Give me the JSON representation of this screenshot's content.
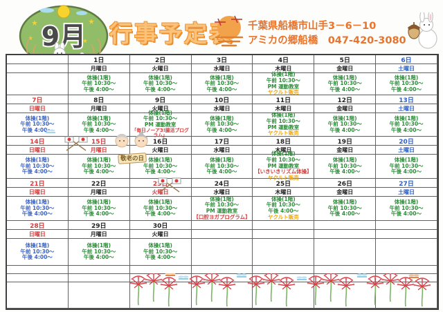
{
  "header": {
    "month_badge": "9月",
    "title": "行事予定表",
    "address": "千葉県船橋市山手3－6－10",
    "facility_phone": "アミカの郷船橋　047-420-3080",
    "decorations": [
      "moon-viewing-bush-icon",
      "harvest-moon-water-icon",
      "rabbit-acorn-icon"
    ]
  },
  "colors": {
    "title_orange": "#f49b3e",
    "address_orange": "#e8742d",
    "event_green": "#2e8b3a",
    "sunday_red": "#d43c3c",
    "saturday_blue": "#2b5fc7",
    "sunday_event_blue": "#3a62c9",
    "yakult_orange": "#f0a409",
    "grid_line": "#5f5f5f"
  },
  "calendar": {
    "keiro_banner": "敬老の日",
    "footer_decoration": "red-spider-lilies-and-dragonflies",
    "footer_rows": [
      {
        "type": "thin"
      },
      {
        "type": "thin"
      },
      {
        "type": "tall"
      }
    ],
    "weeks": [
      {
        "cells": [
          {},
          {
            "date": "1日",
            "day": "月曜日",
            "tone": "weekday",
            "lines": [
              {
                "text": "体操(1階)",
                "color": "green"
              },
              {
                "text": "午前 10:30～",
                "color": "green"
              },
              {
                "text": "午後 4:00～",
                "color": "green"
              }
            ]
          },
          {
            "date": "2日",
            "day": "火曜日",
            "tone": "weekday",
            "lines": [
              {
                "text": "体操(1階)",
                "color": "green"
              },
              {
                "text": "午前 10:30～",
                "color": "green"
              },
              {
                "text": "午後 4:00～",
                "color": "green"
              }
            ]
          },
          {
            "date": "3日",
            "day": "水曜日",
            "tone": "weekday",
            "lines": [
              {
                "text": "体操(1階)",
                "color": "green"
              },
              {
                "text": "午前 10:30～",
                "color": "green"
              },
              {
                "text": "午後 4:00～",
                "color": "green"
              }
            ]
          },
          {
            "date": "4日",
            "day": "木曜日",
            "tone": "weekday",
            "lines": [
              {
                "text": "体操(1階)",
                "color": "green"
              },
              {
                "text": "午前 10:30～",
                "color": "green"
              },
              {
                "text": "PM 運動教室",
                "color": "green"
              },
              {
                "text": "ヤクルト販売",
                "color": "orange"
              }
            ]
          },
          {
            "date": "5日",
            "day": "金曜日",
            "tone": "weekday",
            "lines": [
              {
                "text": "体操(1階)",
                "color": "green"
              },
              {
                "text": "午前 10:30～",
                "color": "green"
              },
              {
                "text": "午後 4:00～",
                "color": "green"
              }
            ]
          },
          {
            "date": "6日",
            "day": "土曜日",
            "tone": "saturday",
            "lines": [
              {
                "text": "体操(1階)",
                "color": "green"
              },
              {
                "text": "午前 10:30～",
                "color": "green"
              },
              {
                "text": "午後 4:00～",
                "color": "green"
              }
            ]
          }
        ]
      },
      {
        "cells": [
          {
            "date": "7日",
            "day": "日曜日",
            "tone": "sunday",
            "lines": [
              {
                "text": "体操(1階)",
                "color": "blue"
              },
              {
                "text": "午前 10:30～",
                "color": "blue"
              },
              {
                "text": "午後 4:00～",
                "color": "blue"
              }
            ]
          },
          {
            "date": "8日",
            "day": "月曜日",
            "tone": "weekday",
            "lines": [
              {
                "text": "体操(1階)",
                "color": "green"
              },
              {
                "text": "午前 10:30～",
                "color": "green"
              },
              {
                "text": "午後 4:00～",
                "color": "green"
              }
            ]
          },
          {
            "date": "9日",
            "day": "火曜日",
            "tone": "weekday",
            "lines": [
              {
                "text": "体操(1階)",
                "color": "green"
              },
              {
                "text": "午前 10:30～",
                "color": "green"
              },
              {
                "text": "PM 運動教室",
                "color": "green"
              },
              {
                "text": "「毎日ノーア3!腸活プログラム」",
                "color": "red"
              }
            ]
          },
          {
            "date": "10日",
            "day": "水曜日",
            "tone": "weekday",
            "lines": [
              {
                "text": "体操(1階)",
                "color": "green"
              },
              {
                "text": "午前 10:30～",
                "color": "green"
              },
              {
                "text": "午後 4:00～",
                "color": "green"
              }
            ]
          },
          {
            "date": "11日",
            "day": "木曜日",
            "tone": "weekday",
            "lines": [
              {
                "text": "体操(1階)",
                "color": "green"
              },
              {
                "text": "午前 10:30～",
                "color": "green"
              },
              {
                "text": "PM 運動教室",
                "color": "green"
              },
              {
                "text": "ヤクルト販売",
                "color": "orange"
              }
            ]
          },
          {
            "date": "12日",
            "day": "金曜日",
            "tone": "weekday",
            "lines": [
              {
                "text": "体操(1階)",
                "color": "green"
              },
              {
                "text": "午前 10:30～",
                "color": "green"
              },
              {
                "text": "午後 4:00～",
                "color": "green"
              }
            ]
          },
          {
            "date": "13日",
            "day": "土曜日",
            "tone": "saturday",
            "lines": [
              {
                "text": "体操(1階)",
                "color": "green"
              },
              {
                "text": "午前 10:30～",
                "color": "green"
              },
              {
                "text": "午後 4:00～",
                "color": "green"
              }
            ]
          }
        ]
      },
      {
        "cells": [
          {
            "date": "14日",
            "day": "日曜日",
            "tone": "sunday",
            "lines": [
              {
                "text": "体操(1階)",
                "color": "blue"
              },
              {
                "text": "午前 10:30～",
                "color": "blue"
              },
              {
                "text": "午後 4:00～",
                "color": "blue"
              }
            ]
          },
          {
            "date": "15日",
            "day": "月曜日",
            "tone": "holiday",
            "lines": [
              {
                "text": "体操(1階)",
                "color": "green"
              },
              {
                "text": "午前 10:30～",
                "color": "green"
              },
              {
                "text": "午後 4:00～",
                "color": "green"
              }
            ]
          },
          {
            "date": "16日",
            "day": "火曜日",
            "tone": "weekday",
            "lines": [
              {
                "text": "体操(1階)",
                "color": "green"
              },
              {
                "text": "午前 10:30～",
                "color": "green"
              },
              {
                "text": "午後 4:00～",
                "color": "green"
              }
            ]
          },
          {
            "date": "17日",
            "day": "水曜日",
            "tone": "weekday",
            "lines": [
              {
                "text": "体操(1階)",
                "color": "green"
              },
              {
                "text": "午前 10:30～",
                "color": "green"
              },
              {
                "text": "午後 4:00～",
                "color": "green"
              }
            ]
          },
          {
            "date": "18日",
            "day": "木曜日",
            "tone": "weekday",
            "lines": [
              {
                "text": "体操(1階)",
                "color": "green"
              },
              {
                "text": "午前 10:30～",
                "color": "green"
              },
              {
                "text": "PM 運動教室",
                "color": "green"
              },
              {
                "text": "【いきいきリズム体操】",
                "color": "red"
              },
              {
                "text": "ヤクルト販売",
                "color": "orange"
              }
            ]
          },
          {
            "date": "19日",
            "day": "金曜日",
            "tone": "weekday",
            "lines": [
              {
                "text": "体操(1階)",
                "color": "green"
              },
              {
                "text": "午前 10:30～",
                "color": "green"
              },
              {
                "text": "午後 4:00～",
                "color": "green"
              }
            ]
          },
          {
            "date": "20日",
            "day": "土曜日",
            "tone": "saturday",
            "lines": [
              {
                "text": "体操(1階)",
                "color": "green"
              },
              {
                "text": "午前 10:30～",
                "color": "green"
              },
              {
                "text": "午後 4:00～",
                "color": "green"
              }
            ]
          }
        ]
      },
      {
        "cells": [
          {
            "date": "21日",
            "day": "日曜日",
            "tone": "sunday",
            "lines": [
              {
                "text": "体操(1階)",
                "color": "blue"
              },
              {
                "text": "午前 10:30～",
                "color": "blue"
              },
              {
                "text": "午後 4:00～",
                "color": "blue"
              }
            ]
          },
          {
            "date": "22日",
            "day": "月曜日",
            "tone": "weekday",
            "lines": [
              {
                "text": "体操(1階)",
                "color": "green"
              },
              {
                "text": "午前 10:30～",
                "color": "green"
              },
              {
                "text": "午後 4:00～",
                "color": "green"
              }
            ]
          },
          {
            "date": "23日",
            "day": "火曜日",
            "tone": "holiday",
            "lines": [
              {
                "text": "体操(1階)",
                "color": "green"
              },
              {
                "text": "午前 10:30～",
                "color": "green"
              },
              {
                "text": "午後 4:00～",
                "color": "green"
              }
            ]
          },
          {
            "date": "24日",
            "day": "水曜日",
            "tone": "weekday",
            "lines": [
              {
                "text": "体操(1階)",
                "color": "green"
              },
              {
                "text": "午前 10:30～",
                "color": "green"
              },
              {
                "text": "PM 運動教室",
                "color": "green"
              },
              {
                "text": "【口腔ヨガプログラム】",
                "color": "red"
              }
            ]
          },
          {
            "date": "25日",
            "day": "木曜日",
            "tone": "weekday",
            "lines": [
              {
                "text": "体操(1階)",
                "color": "green"
              },
              {
                "text": "午前 10:30～",
                "color": "green"
              },
              {
                "text": "午後 4:00～",
                "color": "green"
              },
              {
                "text": "ヤクルト販売",
                "color": "orange"
              }
            ]
          },
          {
            "date": "26日",
            "day": "金曜日",
            "tone": "weekday",
            "lines": [
              {
                "text": "体操(1階)",
                "color": "green"
              },
              {
                "text": "午前 10:30～",
                "color": "green"
              },
              {
                "text": "午後 4:00～",
                "color": "green"
              }
            ]
          },
          {
            "date": "27日",
            "day": "土曜日",
            "tone": "saturday",
            "lines": [
              {
                "text": "体操(1階)",
                "color": "green"
              },
              {
                "text": "午前 10:30～",
                "color": "green"
              },
              {
                "text": "午後 4:00～",
                "color": "green"
              }
            ]
          }
        ]
      },
      {
        "cells": [
          {
            "date": "28日",
            "day": "日曜日",
            "tone": "sunday",
            "lines": [
              {
                "text": "体操(1階)",
                "color": "blue"
              },
              {
                "text": "午前 10:30～",
                "color": "blue"
              },
              {
                "text": "午後 4:00～",
                "color": "blue"
              }
            ]
          },
          {
            "date": "29日",
            "day": "月曜日",
            "tone": "weekday",
            "lines": [
              {
                "text": "体操(1階)",
                "color": "green"
              },
              {
                "text": "午前 10:30～",
                "color": "green"
              },
              {
                "text": "午後 4:00～",
                "color": "green"
              }
            ]
          },
          {
            "date": "30日",
            "day": "火曜日",
            "tone": "weekday",
            "lines": [
              {
                "text": "体操(1階)",
                "color": "green"
              },
              {
                "text": "午前 10:30～",
                "color": "green"
              },
              {
                "text": "午後 4:00～",
                "color": "green"
              }
            ]
          },
          {},
          {},
          {},
          {}
        ]
      }
    ]
  }
}
